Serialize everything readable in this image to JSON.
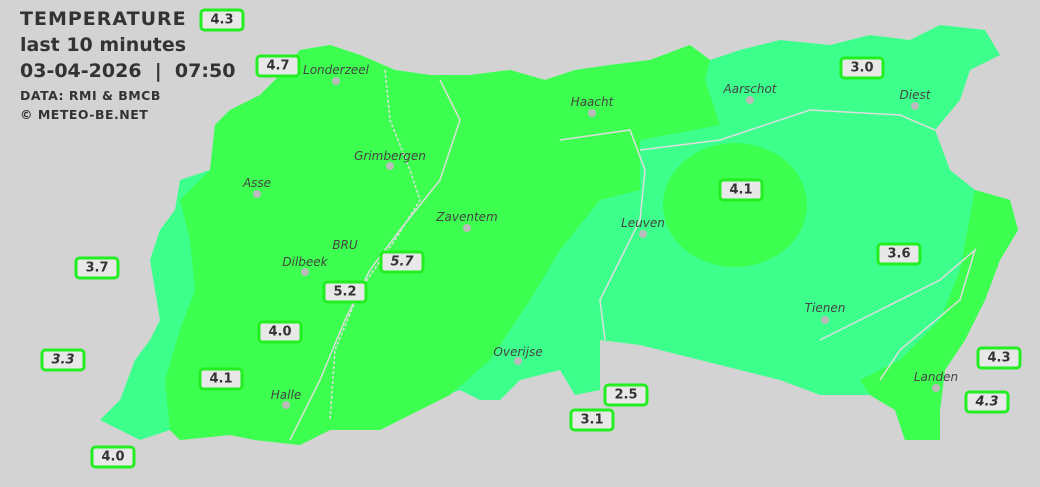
{
  "header": {
    "title": "TEMPERATURE",
    "subtitle": "last 10 minutes",
    "datetime": "03-04-2026  |  07:50",
    "source": "DATA: RMI & BMCB",
    "copyright": "© METEO-BE.NET"
  },
  "colors": {
    "warm_zone": "#3dff4f",
    "cool_zone": "#3dff8c",
    "background": "#d3d3d3",
    "label_border": "#22ee22"
  },
  "cities": [
    {
      "name": "Londerzeel"
    },
    {
      "name": "Haacht"
    },
    {
      "name": "Aarschot"
    },
    {
      "name": "Diest"
    },
    {
      "name": "Grimbergen"
    },
    {
      "name": "Asse"
    },
    {
      "name": "Zaventem"
    },
    {
      "name": "Leuven"
    },
    {
      "name": "Dilbeek"
    },
    {
      "name": "BRU"
    },
    {
      "name": "Tienen"
    },
    {
      "name": "Overijse"
    },
    {
      "name": "Halle"
    },
    {
      "name": "Landen"
    }
  ],
  "stations": [
    "4.3",
    "4.7",
    "3.0",
    "4.1",
    "3.7",
    "5.7",
    "5.2",
    "3.6",
    "4.0",
    "3.3",
    "4.1",
    "2.5",
    "3.1",
    "4.3",
    "4.3",
    "4.0"
  ]
}
